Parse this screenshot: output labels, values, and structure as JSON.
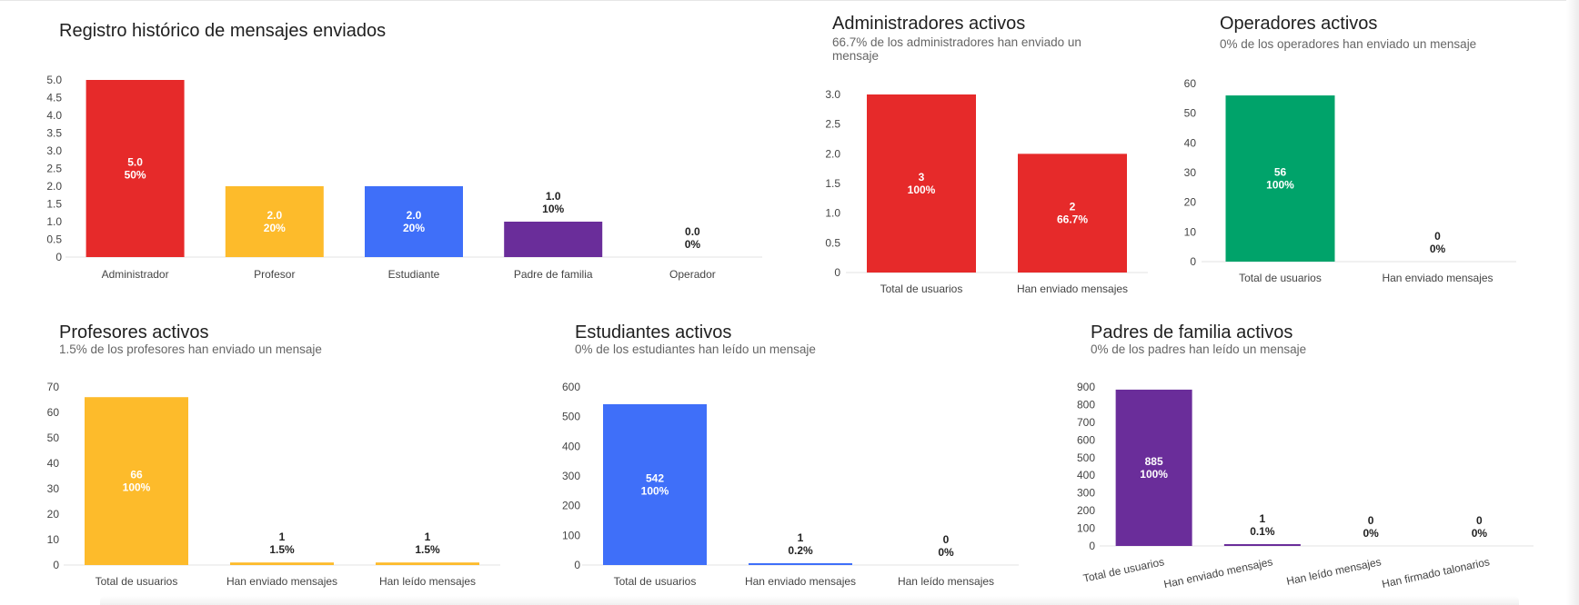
{
  "colors": {
    "red": "#E62A2A",
    "yellow": "#FDBB2B",
    "blue": "#3F6FF9",
    "purple": "#6A2D9A",
    "green": "#00A36A"
  },
  "chart_data": [
    {
      "id": "registro",
      "type": "bar",
      "title": "Registro histórico de mensajes enviados",
      "subtitle": "",
      "categories": [
        "Administrador",
        "Profesor",
        "Estudiante",
        "Padre de familia",
        "Operador"
      ],
      "values": [
        5,
        2,
        2,
        1,
        0
      ],
      "value_labels": [
        "5.0",
        "2.0",
        "2.0",
        "1.0",
        "0.0"
      ],
      "pct_labels": [
        "50%",
        "20%",
        "20%",
        "10%",
        "0%"
      ],
      "bar_colors": [
        "#E62A2A",
        "#FDBB2B",
        "#3F6FF9",
        "#6A2D9A",
        "#6A2D9A"
      ],
      "ylim": [
        0,
        5
      ],
      "yticks": [
        "0",
        "0.5",
        "1.0",
        "1.5",
        "2.0",
        "2.5",
        "3.0",
        "3.5",
        "4.0",
        "4.5",
        "5.0"
      ],
      "grid": false,
      "legend": "none"
    },
    {
      "id": "administradores",
      "type": "bar",
      "title": "Administradores activos",
      "subtitle": "66.7% de los administradores han enviado un mensaje",
      "categories": [
        "Total de usuarios",
        "Han enviado mensajes"
      ],
      "values": [
        3,
        2
      ],
      "value_labels": [
        "3",
        "2"
      ],
      "pct_labels": [
        "100%",
        "66.7%"
      ],
      "bar_colors": [
        "#E62A2A",
        "#E62A2A"
      ],
      "ylim": [
        0,
        3
      ],
      "yticks": [
        "0",
        "0.5",
        "1.0",
        "1.5",
        "2.0",
        "2.5",
        "3.0"
      ],
      "grid": false,
      "legend": "none"
    },
    {
      "id": "operadores",
      "type": "bar",
      "title": "Operadores activos",
      "subtitle": "0% de los operadores han enviado un mensaje",
      "categories": [
        "Total de usuarios",
        "Han enviado mensajes"
      ],
      "values": [
        56,
        0
      ],
      "value_labels": [
        "56",
        "0"
      ],
      "pct_labels": [
        "100%",
        "0%"
      ],
      "bar_colors": [
        "#00A36A",
        "#00A36A"
      ],
      "ylim": [
        0,
        60
      ],
      "yticks": [
        "0",
        "10",
        "20",
        "30",
        "40",
        "50",
        "60"
      ],
      "grid": false,
      "legend": "none"
    },
    {
      "id": "profesores",
      "type": "bar",
      "title": "Profesores activos",
      "subtitle": "1.5% de los profesores han enviado un mensaje",
      "categories": [
        "Total de usuarios",
        "Han enviado mensajes",
        "Han leído mensajes"
      ],
      "values": [
        66,
        1,
        1
      ],
      "value_labels": [
        "66",
        "1",
        "1"
      ],
      "pct_labels": [
        "100%",
        "1.5%",
        "1.5%"
      ],
      "bar_colors": [
        "#FDBB2B",
        "#FDBB2B",
        "#FDBB2B"
      ],
      "ylim": [
        0,
        70
      ],
      "yticks": [
        "0",
        "10",
        "20",
        "30",
        "40",
        "50",
        "60",
        "70"
      ],
      "grid": false,
      "legend": "none"
    },
    {
      "id": "estudiantes",
      "type": "bar",
      "title": "Estudiantes activos",
      "subtitle": "0% de los estudiantes han leído un mensaje",
      "categories": [
        "Total de usuarios",
        "Han enviado mensajes",
        "Han leído mensajes"
      ],
      "values": [
        542,
        1,
        0
      ],
      "value_labels": [
        "542",
        "1",
        "0"
      ],
      "pct_labels": [
        "100%",
        "0.2%",
        "0%"
      ],
      "bar_colors": [
        "#3F6FF9",
        "#3F6FF9",
        "#3F6FF9"
      ],
      "ylim": [
        0,
        600
      ],
      "yticks": [
        "0",
        "100",
        "200",
        "300",
        "400",
        "500",
        "600"
      ],
      "grid": false,
      "legend": "none"
    },
    {
      "id": "padres",
      "type": "bar",
      "title": "Padres de familia activos",
      "subtitle": "0% de los padres han leído un mensaje",
      "categories": [
        "Total de usuarios",
        "Han enviado mensajes",
        "Han leído mensajes",
        "Han firmado talonarios"
      ],
      "values": [
        885,
        1,
        0,
        0
      ],
      "value_labels": [
        "885",
        "1",
        "0",
        "0"
      ],
      "pct_labels": [
        "100%",
        "0.1%",
        "0%",
        "0%"
      ],
      "bar_colors": [
        "#6A2D9A",
        "#6A2D9A",
        "#6A2D9A",
        "#6A2D9A"
      ],
      "ylim": [
        0,
        900
      ],
      "yticks": [
        "0",
        "100",
        "200",
        "300",
        "400",
        "500",
        "600",
        "700",
        "800",
        "900"
      ],
      "grid": false,
      "legend": "none",
      "rotated_category_labels": true
    }
  ]
}
